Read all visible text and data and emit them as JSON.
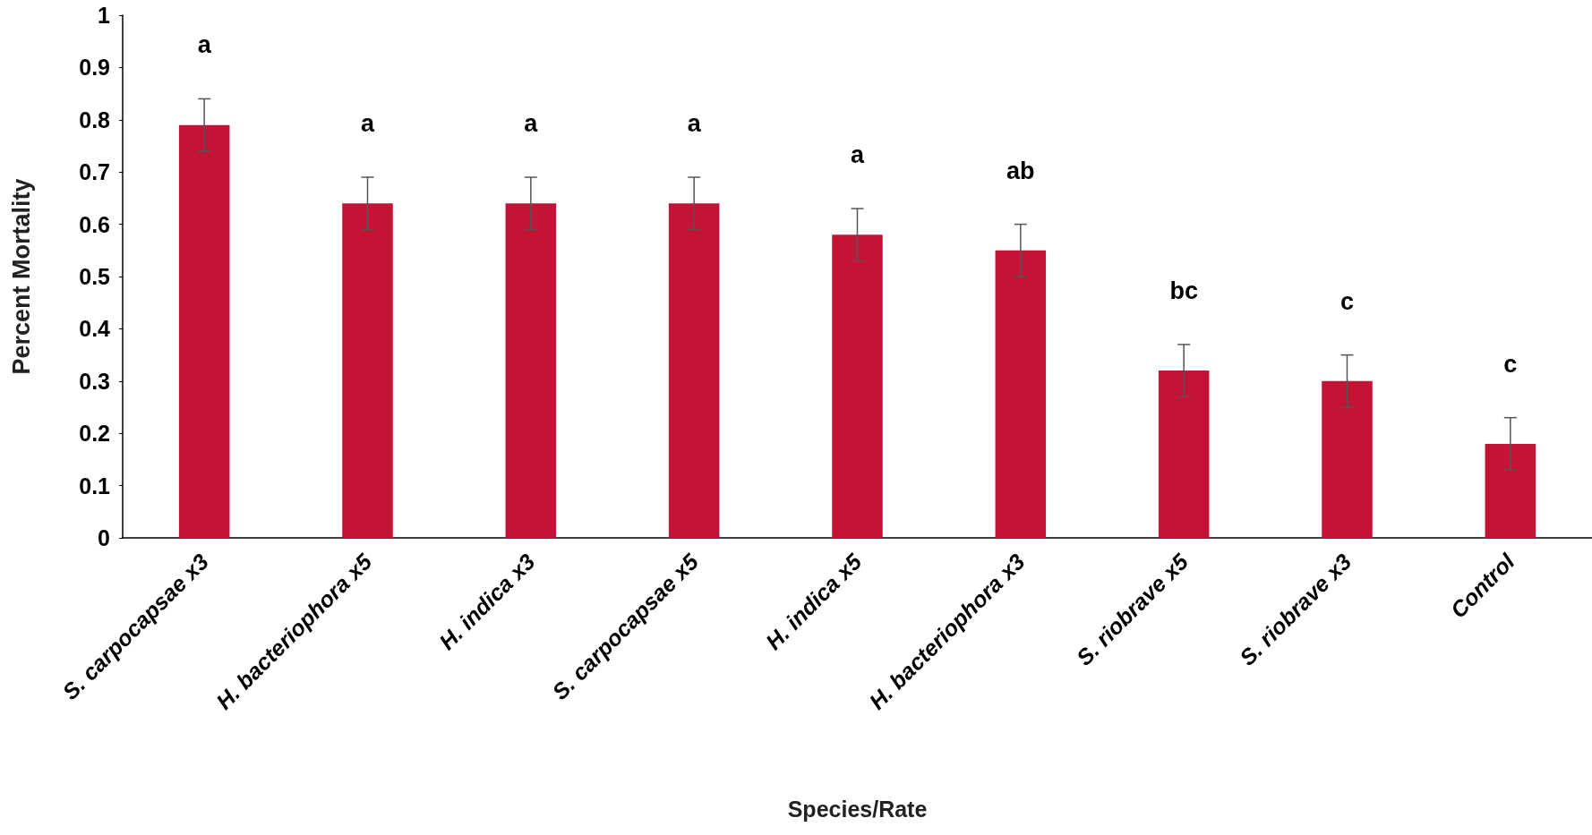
{
  "chart_data": {
    "type": "bar",
    "xlabel": "Species/Rate",
    "ylabel": "Percent Mortality",
    "categories": [
      "S. carpocapsae x3",
      "H. bacteriophora x5",
      "H. indica x3",
      "S. carpocapsae x5",
      "H. indica x5",
      "H. bacteriophora x3",
      "S. riobrave x5",
      "S. riobrave x3",
      "Control"
    ],
    "values": [
      0.79,
      0.64,
      0.64,
      0.64,
      0.58,
      0.55,
      0.32,
      0.3,
      0.18
    ],
    "errors": [
      0.05,
      0.05,
      0.05,
      0.05,
      0.05,
      0.05,
      0.05,
      0.05,
      0.05
    ],
    "color": "#c41436",
    "ylim": [
      0,
      1
    ],
    "yticks": [
      0,
      0.1,
      0.2,
      0.3,
      0.4,
      0.5,
      0.6,
      0.7,
      0.8,
      0.9,
      1
    ],
    "grid": false,
    "annotations": [
      "a",
      "a",
      "a",
      "a",
      "a",
      "ab",
      "bc",
      "c",
      "c"
    ]
  }
}
